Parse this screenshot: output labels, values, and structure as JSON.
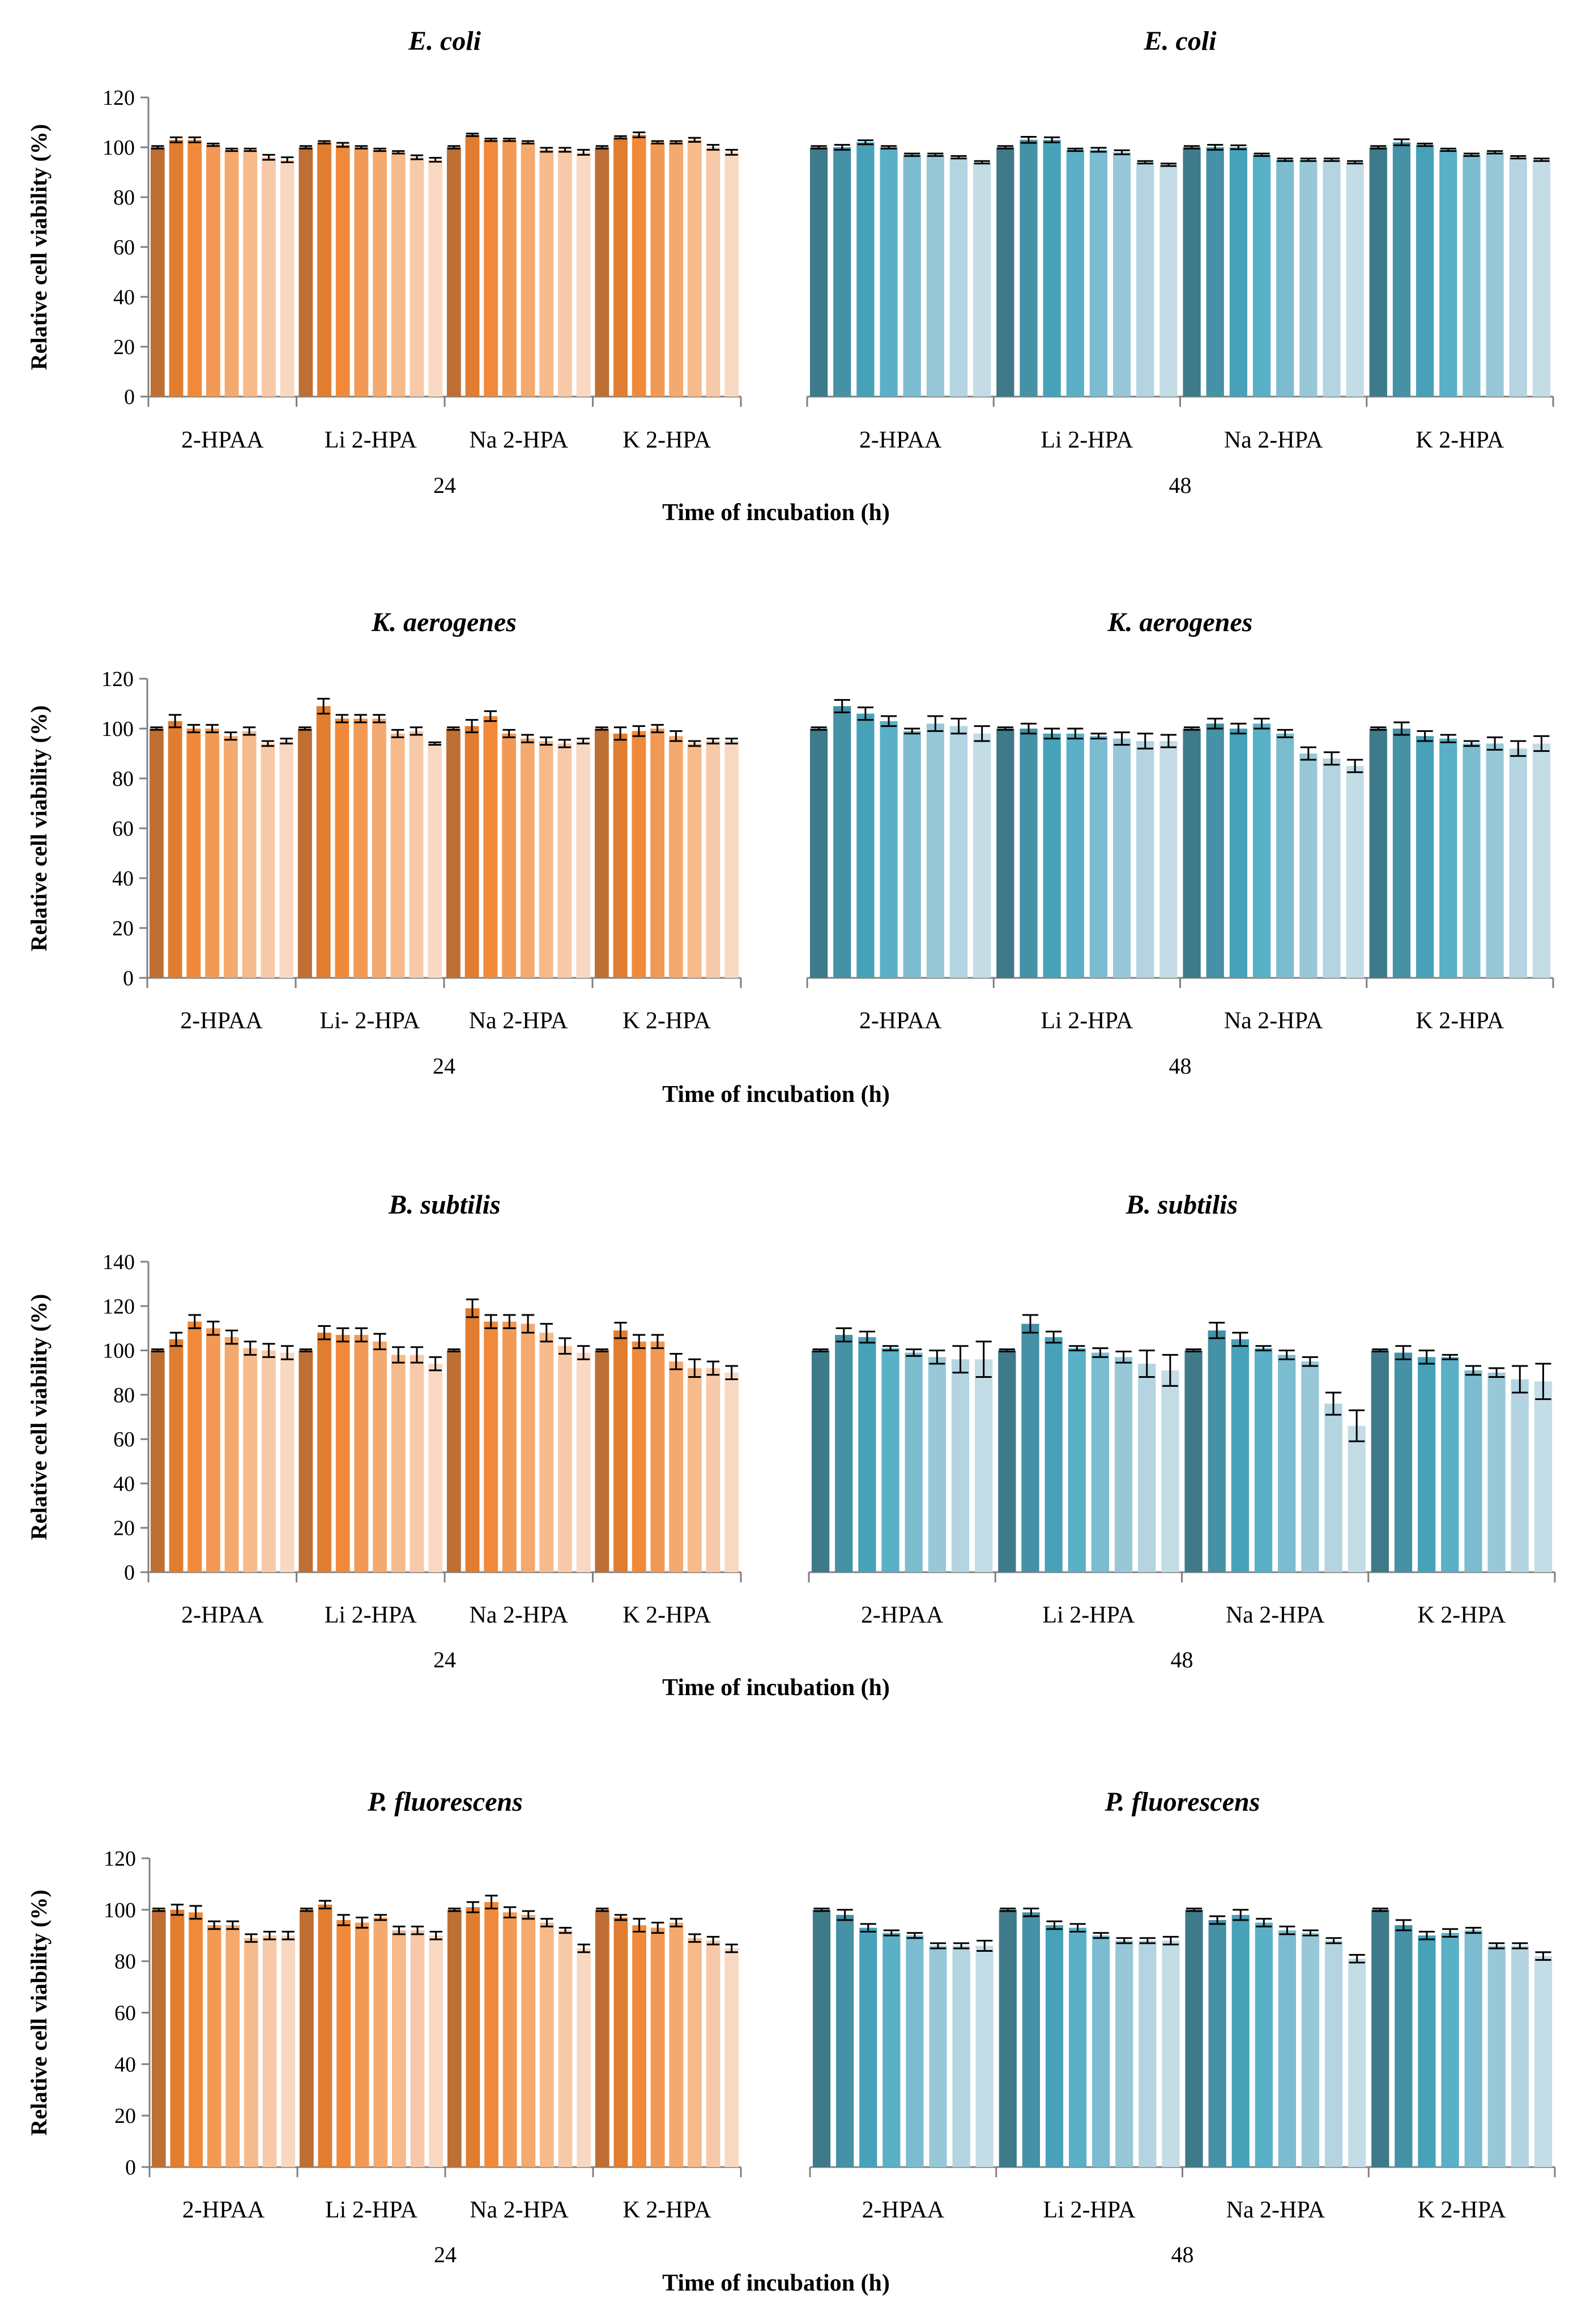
{
  "figure": {
    "ylabel": "Relative cell viability (%)",
    "xlabel": "Time of incubation (h)"
  },
  "chart_data": [
    {
      "type": "bar",
      "organism": "E. coli",
      "title_24": "E. coli",
      "title_48": "E. coli",
      "ylim": [
        0,
        120
      ],
      "yticks": [
        "0",
        "20",
        "40",
        "60",
        "80",
        "100",
        "120"
      ],
      "time_labels": [
        "24",
        "48"
      ],
      "categories_24": [
        "2-HPAA",
        "Li 2-HPA",
        "Na 2-HPA",
        "K 2-HPA"
      ],
      "categories_48": [
        "2-HPAA",
        "Li 2-HPA",
        "Na 2-HPA",
        "K 2-HPA"
      ],
      "series_24": [
        {
          "name": "2-HPAA",
          "values": [
            100,
            103,
            103,
            101,
            99,
            99,
            96,
            95
          ],
          "errors": [
            0.5,
            1,
            1,
            0.5,
            0.5,
            0.5,
            1,
            1
          ]
        },
        {
          "name": "Li 2-HPA",
          "values": [
            100,
            102,
            101,
            100,
            99,
            98,
            96,
            95
          ],
          "errors": [
            0.5,
            0.5,
            0.8,
            0.5,
            0.5,
            0.5,
            0.8,
            0.8
          ]
        },
        {
          "name": "Na 2-HPA",
          "values": [
            100,
            105,
            103,
            103,
            102,
            99,
            99,
            98
          ],
          "errors": [
            0.5,
            0.5,
            0.5,
            0.5,
            0.5,
            0.8,
            0.8,
            1
          ]
        },
        {
          "name": "K 2-HPA",
          "values": [
            100,
            104,
            105,
            102,
            102,
            103,
            100,
            98
          ],
          "errors": [
            0.5,
            0.5,
            1,
            0.5,
            0.5,
            0.8,
            1,
            1
          ]
        }
      ],
      "series_48": [
        {
          "name": "2-HPAA",
          "values": [
            100,
            100,
            102,
            100,
            97,
            97,
            96,
            94
          ],
          "errors": [
            0.5,
            1,
            0.8,
            0.5,
            0.5,
            0.5,
            0.5,
            0.5
          ]
        },
        {
          "name": "Li 2-HPA",
          "values": [
            100,
            103,
            103,
            99,
            99,
            98,
            94,
            93
          ],
          "errors": [
            0.5,
            1.2,
            1,
            0.5,
            0.8,
            0.8,
            0.5,
            0.5
          ]
        },
        {
          "name": "Na 2-HPA",
          "values": [
            100,
            100,
            100,
            97,
            95,
            95,
            95,
            94
          ],
          "errors": [
            0.5,
            1,
            0.8,
            0.5,
            0.5,
            0.5,
            0.5,
            0.5
          ]
        },
        {
          "name": "K 2-HPA",
          "values": [
            100,
            102,
            101,
            99,
            97,
            98,
            96,
            95
          ],
          "errors": [
            0.5,
            1.2,
            0.5,
            0.5,
            0.5,
            0.5,
            0.5,
            0.5
          ]
        }
      ]
    },
    {
      "type": "bar",
      "organism": "K. aerogenes",
      "title_24": "K. aerogenes",
      "title_48": "K. aerogenes",
      "ylim": [
        0,
        120
      ],
      "yticks": [
        "0",
        "20",
        "40",
        "60",
        "80",
        "100",
        "120"
      ],
      "time_labels": [
        "24",
        "48"
      ],
      "categories_24": [
        "2-HPAA",
        "Li- 2-HPA",
        "Na 2-HPA",
        "K 2-HPA"
      ],
      "categories_48": [
        "2-HPAA",
        "Li 2-HPA",
        "Na 2-HPA",
        "K 2-HPA"
      ],
      "series_24": [
        {
          "name": "2-HPAA",
          "values": [
            100,
            103,
            100,
            100,
            97,
            99,
            94,
            95
          ],
          "errors": [
            0.5,
            2.5,
            1.5,
            1.5,
            1.5,
            1.5,
            1,
            1
          ]
        },
        {
          "name": "Li- 2-HPA",
          "values": [
            100,
            109,
            104,
            104,
            104,
            98,
            99,
            94
          ],
          "errors": [
            0.5,
            3,
            1.5,
            1.5,
            1.5,
            1.5,
            1.5,
            0.5
          ]
        },
        {
          "name": "Na 2-HPA",
          "values": [
            100,
            101,
            105,
            98,
            96,
            95,
            94,
            95
          ],
          "errors": [
            0.5,
            2.5,
            2,
            1.5,
            1.5,
            1.5,
            1.5,
            1
          ]
        },
        {
          "name": "K 2-HPA",
          "values": [
            100,
            98,
            99,
            100,
            97,
            94,
            95,
            95
          ],
          "errors": [
            0.5,
            2.5,
            2,
            1.5,
            2,
            1,
            1,
            1
          ]
        }
      ],
      "series_48": [
        {
          "name": "2-HPAA",
          "values": [
            100,
            109,
            106,
            103,
            99,
            102,
            101,
            98
          ],
          "errors": [
            0.5,
            2.5,
            2.5,
            2,
            1,
            3,
            3,
            3
          ]
        },
        {
          "name": "Li 2-HPA",
          "values": [
            100,
            100,
            98,
            98,
            97,
            96,
            95,
            95
          ],
          "errors": [
            0.5,
            2,
            2,
            2,
            1,
            2.5,
            3,
            2.5
          ]
        },
        {
          "name": "Na 2-HPA",
          "values": [
            100,
            102,
            100,
            102,
            98,
            90,
            88,
            85
          ],
          "errors": [
            0.5,
            2,
            2,
            2,
            1.5,
            2.5,
            2.5,
            2.5
          ]
        },
        {
          "name": "K 2-HPA",
          "values": [
            100,
            100,
            97,
            96,
            94,
            94,
            92,
            94
          ],
          "errors": [
            0.5,
            2.5,
            2,
            1.5,
            1,
            2.5,
            3,
            3
          ]
        }
      ]
    },
    {
      "type": "bar",
      "organism": "B. subtilis",
      "title_24": "B. subtilis",
      "title_48": "B. subtilis",
      "ylim": [
        0,
        140
      ],
      "yticks": [
        "0",
        "20",
        "40",
        "60",
        "80",
        "100",
        "120",
        "140"
      ],
      "time_labels": [
        "24",
        "48"
      ],
      "categories_24": [
        "2-HPAA",
        "Li 2-HPA",
        "Na 2-HPA",
        "K 2-HPA"
      ],
      "categories_48": [
        "2-HPAA",
        "Li 2-HPA",
        "Na 2-HPA",
        "K 2-HPA"
      ],
      "series_24": [
        {
          "name": "2-HPAA",
          "values": [
            100,
            105,
            113,
            110,
            106,
            101,
            100,
            99
          ],
          "errors": [
            0.5,
            3,
            3,
            3,
            3,
            3,
            3,
            3
          ]
        },
        {
          "name": "Li 2-HPA",
          "values": [
            100,
            108,
            107,
            107,
            104,
            98,
            98,
            94
          ],
          "errors": [
            0.5,
            3,
            3,
            3,
            3.5,
            3.5,
            3.5,
            3
          ]
        },
        {
          "name": "Na 2-HPA",
          "values": [
            100,
            119,
            113,
            113,
            112,
            108,
            102,
            99
          ],
          "errors": [
            0.5,
            4,
            3,
            3,
            4,
            4,
            3.5,
            3
          ]
        },
        {
          "name": "K 2-HPA",
          "values": [
            100,
            109,
            104,
            104,
            95,
            92,
            92,
            90
          ],
          "errors": [
            0.5,
            3.5,
            3,
            3,
            3.5,
            4,
            3,
            3
          ]
        }
      ],
      "series_48": [
        {
          "name": "2-HPAA",
          "values": [
            100,
            107,
            106,
            101,
            99,
            97,
            96,
            96
          ],
          "errors": [
            0.5,
            3,
            2.5,
            1,
            1.5,
            3,
            6,
            8
          ]
        },
        {
          "name": "Li 2-HPA",
          "values": [
            100,
            112,
            106,
            101,
            99,
            97,
            94,
            91
          ],
          "errors": [
            0.5,
            4,
            2.5,
            1,
            2,
            2.5,
            6,
            7
          ]
        },
        {
          "name": "Na 2-HPA",
          "values": [
            100,
            109,
            105,
            101,
            98,
            95,
            76,
            66
          ],
          "errors": [
            0.5,
            3.5,
            3,
            1,
            2,
            2,
            5,
            7
          ]
        },
        {
          "name": "K 2-HPA",
          "values": [
            100,
            99,
            97,
            97,
            91,
            90,
            87,
            86
          ],
          "errors": [
            0.5,
            3,
            3,
            1,
            2,
            2,
            6,
            8
          ]
        }
      ]
    },
    {
      "type": "bar",
      "organism": "P. fluorescens",
      "title_24": "P. fluorescens",
      "title_48": "P. fluorescens",
      "ylim": [
        0,
        120
      ],
      "yticks": [
        "0",
        "20",
        "40",
        "60",
        "80",
        "100",
        "120"
      ],
      "time_labels": [
        "24",
        "48"
      ],
      "categories_24": [
        "2-HPAA",
        "Li 2-HPA",
        "Na 2-HPA",
        "K 2-HPA"
      ],
      "categories_48": [
        "2-HPAA",
        "Li 2-HPA",
        "Na 2-HPA",
        "K 2-HPA"
      ],
      "series_24": [
        {
          "name": "2-HPAA",
          "values": [
            100,
            100,
            99,
            94,
            94,
            89,
            90,
            90
          ],
          "errors": [
            0.5,
            2,
            2.5,
            1.5,
            1.5,
            1.5,
            1.5,
            1.5
          ]
        },
        {
          "name": "Li 2-HPA",
          "values": [
            100,
            102,
            96,
            95,
            97,
            92,
            92,
            90
          ],
          "errors": [
            0.5,
            1.5,
            2,
            2,
            1,
            1.5,
            1.5,
            1.5
          ]
        },
        {
          "name": "Na 2-HPA",
          "values": [
            100,
            101,
            103,
            99,
            98,
            95,
            92,
            85
          ],
          "errors": [
            0.5,
            2,
            2.5,
            2,
            1.5,
            1.5,
            1,
            1.5
          ]
        },
        {
          "name": "K 2-HPA",
          "values": [
            100,
            97,
            94,
            93,
            95,
            89,
            88,
            85
          ],
          "errors": [
            0.5,
            1,
            2.5,
            2,
            1.5,
            1.5,
            1.5,
            1.5
          ]
        }
      ],
      "series_48": [
        {
          "name": "2-HPAA",
          "values": [
            100,
            98,
            93,
            91,
            90,
            86,
            86,
            86
          ],
          "errors": [
            0.5,
            2,
            1.5,
            1,
            1,
            1,
            1,
            2
          ]
        },
        {
          "name": "Li 2-HPA",
          "values": [
            100,
            99,
            94,
            93,
            90,
            88,
            88,
            88
          ],
          "errors": [
            0.5,
            1.5,
            1.5,
            1.5,
            1,
            1,
            1,
            1.5
          ]
        },
        {
          "name": "Na 2-HPA",
          "values": [
            100,
            96,
            98,
            95,
            92,
            91,
            88,
            81
          ],
          "errors": [
            0.5,
            1.5,
            2,
            1.5,
            1.5,
            1,
            1,
            1.5
          ]
        },
        {
          "name": "K 2-HPA",
          "values": [
            100,
            94,
            90,
            91,
            92,
            86,
            86,
            82
          ],
          "errors": [
            0.5,
            2,
            1.5,
            1.5,
            1,
            1,
            1,
            1.5
          ]
        }
      ]
    }
  ],
  "colors": {
    "orange_shades": [
      "#bd6f34",
      "#e07d30",
      "#f08a3a",
      "#f29a55",
      "#f4a96e",
      "#f6ba8b",
      "#f8c9a8",
      "#f9d8c2"
    ],
    "teal_shades": [
      "#3e7a8a",
      "#4591a6",
      "#47a2b9",
      "#5ab0c6",
      "#7cbcd0",
      "#98c8d8",
      "#b3d4e0",
      "#c3dce5"
    ],
    "axis": "#808080",
    "errorbar": "#000000"
  }
}
